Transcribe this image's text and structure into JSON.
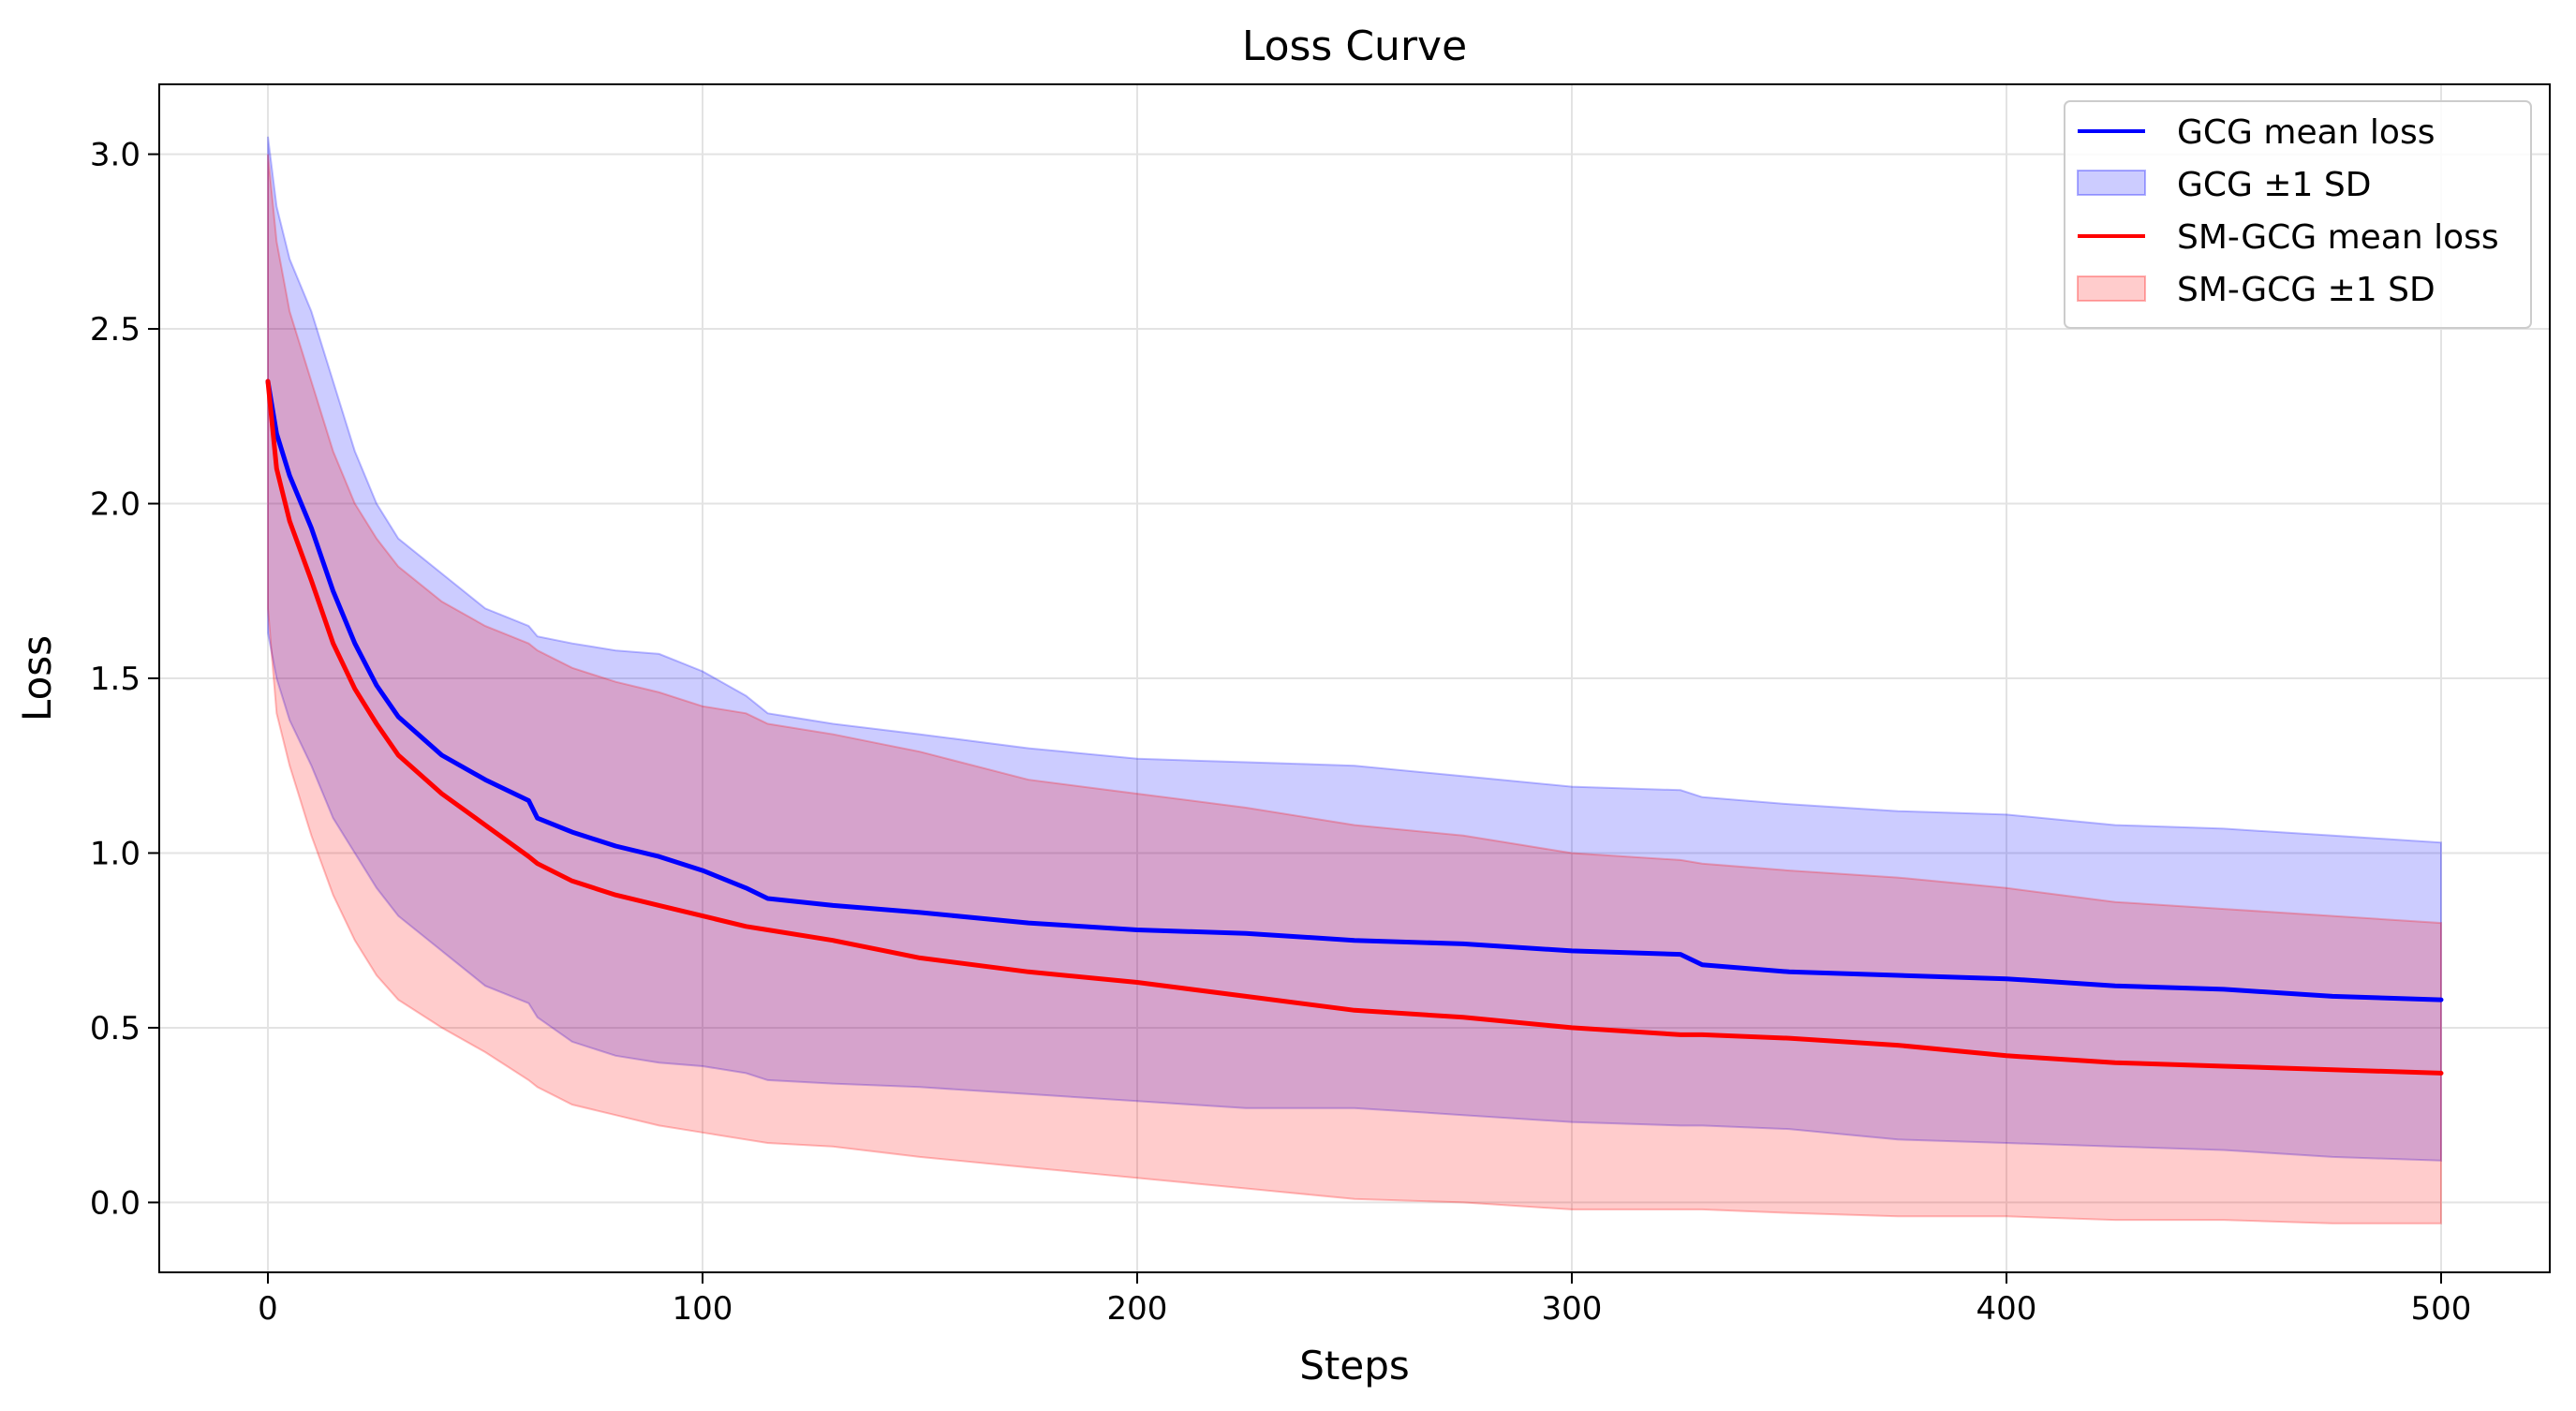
{
  "chart_data": {
    "type": "line",
    "title": "Loss Curve",
    "xlabel": "Steps",
    "ylabel": "Loss",
    "xlim": [
      -25,
      525
    ],
    "ylim": [
      -0.2,
      3.2
    ],
    "xticks": [
      0,
      100,
      200,
      300,
      400,
      500
    ],
    "yticks": [
      0.0,
      0.5,
      1.0,
      1.5,
      2.0,
      2.5,
      3.0
    ],
    "xtick_labels": [
      "0",
      "100",
      "200",
      "300",
      "400",
      "500"
    ],
    "ytick_labels": [
      "0.0",
      "0.5",
      "1.0",
      "1.5",
      "2.0",
      "2.5",
      "3.0"
    ],
    "grid": true,
    "legend_position": "top-right",
    "x": [
      0,
      2,
      5,
      10,
      15,
      20,
      25,
      30,
      40,
      50,
      60,
      62,
      70,
      80,
      90,
      100,
      110,
      115,
      130,
      150,
      175,
      200,
      225,
      250,
      275,
      300,
      325,
      330,
      350,
      375,
      400,
      425,
      450,
      475,
      500
    ],
    "series": [
      {
        "name": "GCG mean loss",
        "band_name": "GCG ±1 SD",
        "color": "#0000ff",
        "band_color": "#0000ff",
        "mean": [
          2.35,
          2.2,
          2.08,
          1.93,
          1.75,
          1.6,
          1.48,
          1.39,
          1.28,
          1.21,
          1.15,
          1.1,
          1.06,
          1.02,
          0.99,
          0.95,
          0.9,
          0.87,
          0.85,
          0.83,
          0.8,
          0.78,
          0.77,
          0.75,
          0.74,
          0.72,
          0.71,
          0.68,
          0.66,
          0.65,
          0.64,
          0.62,
          0.61,
          0.59,
          0.58
        ],
        "upper": [
          3.05,
          2.85,
          2.7,
          2.55,
          2.35,
          2.15,
          2.0,
          1.9,
          1.8,
          1.7,
          1.65,
          1.62,
          1.6,
          1.58,
          1.57,
          1.52,
          1.45,
          1.4,
          1.37,
          1.34,
          1.3,
          1.27,
          1.26,
          1.25,
          1.22,
          1.19,
          1.18,
          1.16,
          1.14,
          1.12,
          1.11,
          1.08,
          1.07,
          1.05,
          1.03
        ],
        "lower": [
          1.63,
          1.5,
          1.38,
          1.25,
          1.1,
          1.0,
          0.9,
          0.82,
          0.72,
          0.62,
          0.57,
          0.53,
          0.46,
          0.42,
          0.4,
          0.39,
          0.37,
          0.35,
          0.34,
          0.33,
          0.31,
          0.29,
          0.27,
          0.27,
          0.25,
          0.23,
          0.22,
          0.22,
          0.21,
          0.18,
          0.17,
          0.16,
          0.15,
          0.13,
          0.12
        ]
      },
      {
        "name": "SM-GCG mean loss",
        "band_name": "SM-GCG ±1 SD",
        "color": "#ff0000",
        "band_color": "#ff0000",
        "mean": [
          2.35,
          2.1,
          1.95,
          1.78,
          1.6,
          1.47,
          1.37,
          1.28,
          1.17,
          1.08,
          0.99,
          0.97,
          0.92,
          0.88,
          0.85,
          0.82,
          0.79,
          0.78,
          0.75,
          0.7,
          0.66,
          0.63,
          0.59,
          0.55,
          0.53,
          0.5,
          0.48,
          0.48,
          0.47,
          0.45,
          0.42,
          0.4,
          0.39,
          0.38,
          0.37
        ],
        "upper": [
          3.0,
          2.75,
          2.55,
          2.35,
          2.15,
          2.0,
          1.9,
          1.82,
          1.72,
          1.65,
          1.6,
          1.58,
          1.53,
          1.49,
          1.46,
          1.42,
          1.4,
          1.37,
          1.34,
          1.29,
          1.21,
          1.17,
          1.13,
          1.08,
          1.05,
          1.0,
          0.98,
          0.97,
          0.95,
          0.93,
          0.9,
          0.86,
          0.84,
          0.82,
          0.8
        ],
        "lower": [
          1.7,
          1.4,
          1.25,
          1.05,
          0.88,
          0.75,
          0.65,
          0.58,
          0.5,
          0.43,
          0.35,
          0.33,
          0.28,
          0.25,
          0.22,
          0.2,
          0.18,
          0.17,
          0.16,
          0.13,
          0.1,
          0.07,
          0.04,
          0.01,
          0.0,
          -0.02,
          -0.02,
          -0.02,
          -0.03,
          -0.04,
          -0.04,
          -0.05,
          -0.05,
          -0.06,
          -0.06
        ]
      }
    ]
  }
}
